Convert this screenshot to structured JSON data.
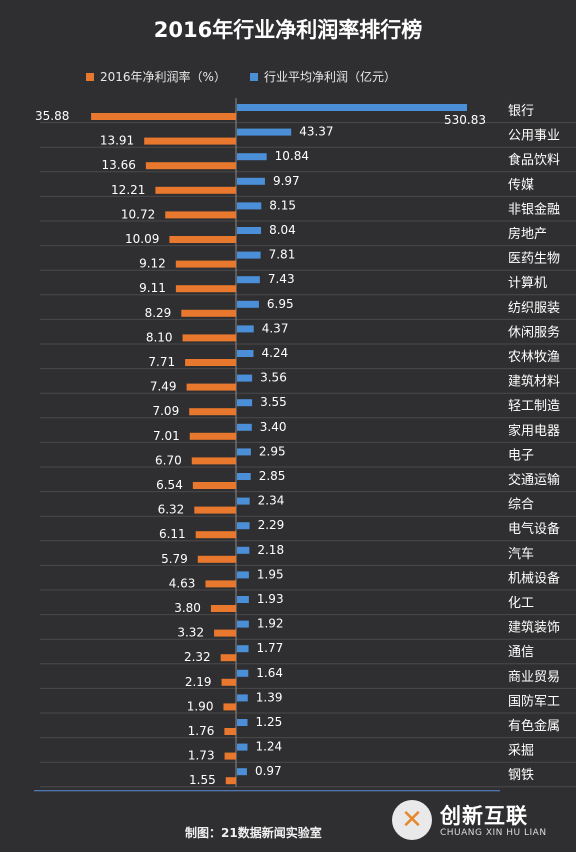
{
  "chart_data": {
    "type": "bar",
    "title": "2016年行业净利润率排行榜",
    "series": [
      {
        "name": "2016年净利润率（%）",
        "color": "#e8782d",
        "values": [
          35.88,
          13.91,
          13.66,
          12.21,
          10.72,
          10.09,
          9.12,
          9.11,
          8.29,
          8.1,
          7.71,
          7.49,
          7.09,
          7.01,
          6.7,
          6.54,
          6.32,
          6.11,
          5.79,
          4.63,
          3.8,
          3.32,
          2.32,
          2.19,
          1.9,
          1.76,
          1.73,
          1.55
        ],
        "labels": [
          "35.88",
          "13.91",
          "13.66",
          "12.21",
          "10.72",
          "10.09",
          "9.12",
          "9.11",
          "8.29",
          "8.10",
          "7.71",
          "7.49",
          "7.09",
          "7.01",
          "6.70",
          "6.54",
          "6.32",
          "6.11",
          "5.79",
          "4.63",
          "3.80",
          "3.32",
          "2.32",
          "2.19",
          "1.90",
          "1.76",
          "1.73",
          "1.55"
        ]
      },
      {
        "name": "行业平均净利润（亿元）",
        "color": "#4a8fd8",
        "values": [
          530.83,
          43.37,
          10.84,
          9.97,
          8.15,
          8.04,
          7.81,
          7.43,
          6.95,
          4.37,
          4.24,
          3.56,
          3.55,
          3.4,
          2.95,
          2.85,
          2.34,
          2.29,
          2.18,
          1.95,
          1.93,
          1.92,
          1.77,
          1.64,
          1.39,
          1.25,
          1.24,
          0.97
        ],
        "labels": [
          "530.83",
          "43.37",
          "10.84",
          "9.97",
          "8.15",
          "8.04",
          "7.81",
          "7.43",
          "6.95",
          "4.37",
          "4.24",
          "3.56",
          "3.55",
          "3.40",
          "2.95",
          "2.85",
          "2.34",
          "2.29",
          "2.18",
          "1.95",
          "1.93",
          "1.92",
          "1.77",
          "1.64",
          "1.39",
          "1.25",
          "1.24",
          "0.97"
        ]
      }
    ],
    "categories": [
      "银行",
      "公用事业",
      "食品饮料",
      "传媒",
      "非银金融",
      "房地产",
      "医药生物",
      "计算机",
      "纺织服装",
      "休闲服务",
      "农林牧渔",
      "建筑材料",
      "轻工制造",
      "家用电器",
      "电子",
      "交通运输",
      "综合",
      "电气设备",
      "汽车",
      "机械设备",
      "化工",
      "建筑装饰",
      "通信",
      "商业贸易",
      "国防军工",
      "有色金属",
      "采掘",
      "钢铁"
    ],
    "legend_position": "top",
    "grid": true
  },
  "footer": "制图：21数据新闻实验室",
  "logo": {
    "mark": "✕",
    "name": "创新互联",
    "pinyin": "CHUANG XIN HU LIAN"
  }
}
